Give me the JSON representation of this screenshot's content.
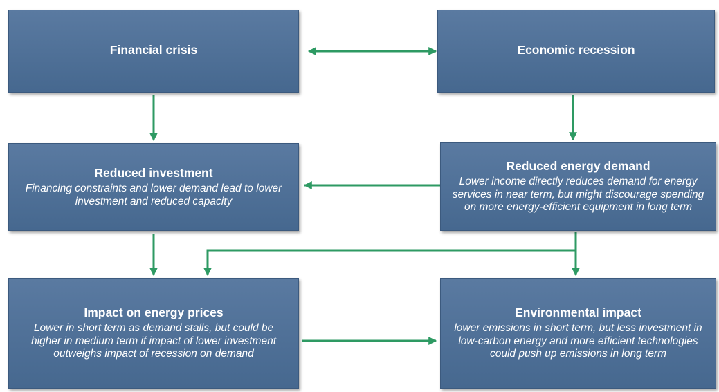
{
  "nodes": [
    {
      "title": "Financial crisis"
    },
    {
      "title": "Economic recession"
    },
    {
      "title": "Reduced investment",
      "description": "Financing constraints and lower demand lead to lower investment and reduced capacity"
    },
    {
      "title": "Reduced energy demand",
      "description": "Lower income directly reduces demand for energy services in near term, but might discourage spending on more energy-efficient equipment in long term"
    },
    {
      "title": "Impact on energy prices",
      "description": "Lower in short term as demand stalls, but could be higher in medium term if impact of lower investment outweighs impact of recession on demand"
    },
    {
      "title": "Environmental impact",
      "description": "lower emissions in short term, but less investment in low-carbon energy and more efficient technologies could push up emissions in long term"
    }
  ]
}
